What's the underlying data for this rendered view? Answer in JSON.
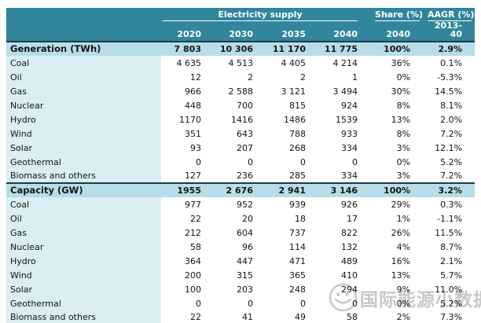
{
  "colors": {
    "header_bg": "#31859C",
    "header_text": "#FFFFFF",
    "section_row_bg": "#B7DEE8",
    "label_col_bg": "#DAEEF3",
    "data_cell_bg": "#FFFFFF",
    "border_dark": "#1B3A47",
    "text": "#141414",
    "watermark": "#C2C2C2"
  },
  "watermark": {
    "icon": "wechat-logo-icon",
    "text": "国际能源小数据"
  },
  "chart_data": {
    "type": "table",
    "title": "Electricity supply",
    "header": {
      "group_label": "Electricity supply",
      "share_label": "Share (%)",
      "aagr_label": "AAGR (%)",
      "columns": [
        "2020",
        "2030",
        "2035",
        "2040",
        "2040",
        "2013-40"
      ]
    },
    "sections": [
      {
        "label": "Generation (TWh)",
        "values": [
          "7 803",
          "10 306",
          "11 170",
          "11 775",
          "100%",
          "2.9%"
        ],
        "rows": [
          {
            "label": "Coal",
            "values": [
              "4 635",
              "4 513",
              "4 405",
              "4 214",
              "36%",
              "0.1%"
            ]
          },
          {
            "label": "Oil",
            "values": [
              "12",
              "2",
              "2",
              "1",
              "0%",
              "-5.3%"
            ]
          },
          {
            "label": "Gas",
            "values": [
              "966",
              "2 588",
              "3 121",
              "3 494",
              "30%",
              "14.5%"
            ]
          },
          {
            "label": "Nuclear",
            "values": [
              "448",
              "700",
              "815",
              "924",
              "8%",
              "8.1%"
            ]
          },
          {
            "label": "Hydro",
            "values": [
              "1170",
              "1416",
              "1486",
              "1539",
              "13%",
              "2.0%"
            ]
          },
          {
            "label": "Wind",
            "values": [
              "351",
              "643",
              "788",
              "933",
              "8%",
              "7.2%"
            ]
          },
          {
            "label": "Solar",
            "values": [
              "93",
              "207",
              "268",
              "334",
              "3%",
              "12.1%"
            ]
          },
          {
            "label": "Geothermal",
            "values": [
              "0",
              "0",
              "0",
              "0",
              "0%",
              "5.2%"
            ]
          },
          {
            "label": "Biomass and others",
            "values": [
              "127",
              "236",
              "285",
              "334",
              "3%",
              "7.2%"
            ]
          }
        ]
      },
      {
        "label": "Capacity (GW)",
        "values": [
          "1955",
          "2 676",
          "2 941",
          "3 146",
          "100%",
          "3.2%"
        ],
        "rows": [
          {
            "label": "Coal",
            "values": [
              "977",
              "952",
              "939",
              "926",
              "29%",
              "0.3%"
            ]
          },
          {
            "label": "Oil",
            "values": [
              "22",
              "20",
              "18",
              "17",
              "1%",
              "-1.1%"
            ]
          },
          {
            "label": "Gas",
            "values": [
              "212",
              "604",
              "737",
              "822",
              "26%",
              "11.5%"
            ]
          },
          {
            "label": "Nuclear",
            "values": [
              "58",
              "96",
              "114",
              "132",
              "4%",
              "8.7%"
            ]
          },
          {
            "label": "Hydro",
            "values": [
              "364",
              "447",
              "471",
              "489",
              "16%",
              "2.1%"
            ]
          },
          {
            "label": "Wind",
            "values": [
              "200",
              "315",
              "365",
              "410",
              "13%",
              "5.7%"
            ]
          },
          {
            "label": "Solar",
            "values": [
              "100",
              "203",
              "248",
              "294",
              "9%",
              "11.0%"
            ]
          },
          {
            "label": "Geothermal",
            "values": [
              "0",
              "0",
              "0",
              "0",
              "0%",
              "5.2%"
            ]
          },
          {
            "label": "Biomass and others",
            "values": [
              "22",
              "41",
              "49",
              "58",
              "2%",
              "7.3%"
            ]
          }
        ]
      }
    ]
  }
}
